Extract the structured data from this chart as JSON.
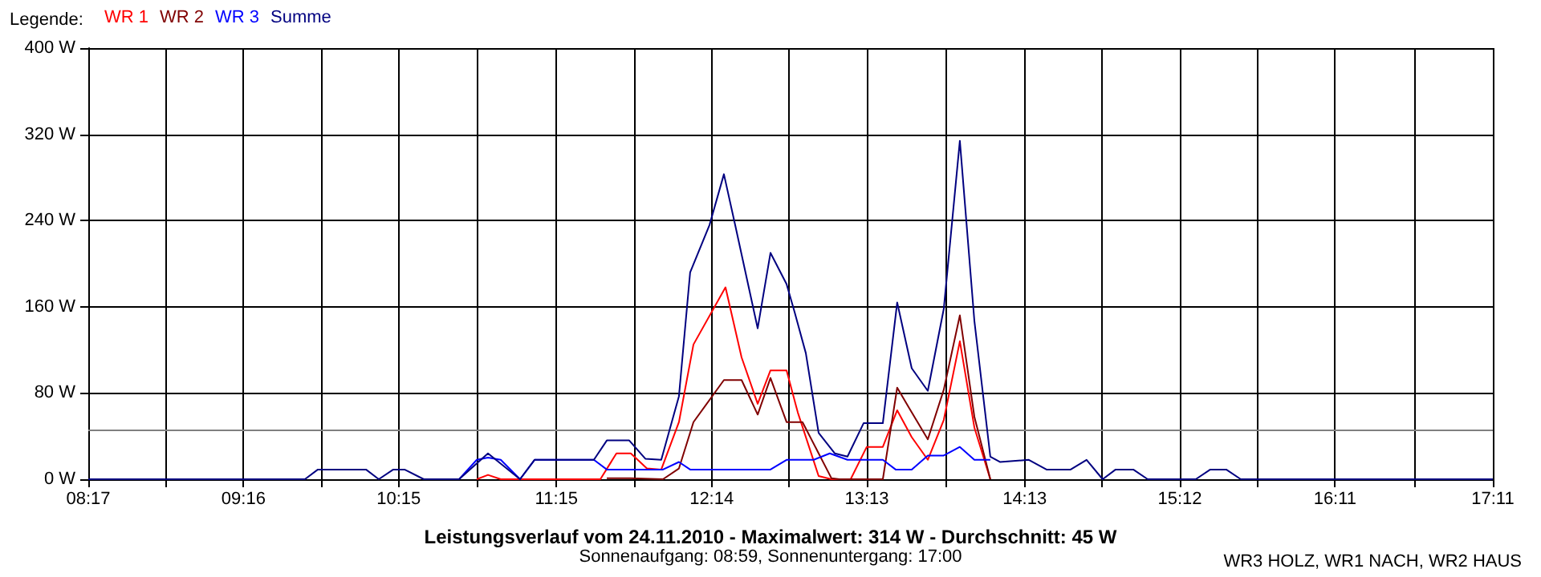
{
  "chart_data": {
    "type": "line",
    "title": "Leistungsverlauf vom 24.11.2010 - Maximalwert: 314 W - Durchschnitt: 45 W",
    "subtitle": "Sonnenaufgang: 08:59, Sonnenuntergang: 17:00",
    "annotations": [
      "WR3 HOLZ, WR1 NACH, WR2 HAUS"
    ],
    "legend_title": "Legende:",
    "legend": "top left",
    "grid": true,
    "marker": "none",
    "line_style": "solid",
    "xlim": [
      8.2833,
      17.1833
    ],
    "xticks": [
      {
        "value": 8.2833,
        "label": "08:17"
      },
      {
        "value": 8.775,
        "label": null
      },
      {
        "value": 9.2667,
        "label": "09:16"
      },
      {
        "value": 9.7583,
        "label": null
      },
      {
        "value": 10.25,
        "label": "10:15"
      },
      {
        "value": 10.75,
        "label": null
      },
      {
        "value": 11.25,
        "label": "11:15"
      },
      {
        "value": 11.7417,
        "label": null
      },
      {
        "value": 12.2333,
        "label": "12:14"
      },
      {
        "value": 12.725,
        "label": null
      },
      {
        "value": 13.2167,
        "label": "13:13"
      },
      {
        "value": 13.7167,
        "label": null
      },
      {
        "value": 14.2167,
        "label": "14:13"
      },
      {
        "value": 14.7083,
        "label": null
      },
      {
        "value": 15.2,
        "label": "15:12"
      },
      {
        "value": 15.6917,
        "label": null
      },
      {
        "value": 16.1833,
        "label": "16:11"
      },
      {
        "value": 16.6833,
        "label": null
      },
      {
        "value": 17.1833,
        "label": "17:11"
      }
    ],
    "ylim": [
      0,
      400
    ],
    "yticks": [
      {
        "value": 0,
        "label": "0 W"
      },
      {
        "value": 80,
        "label": "80 W"
      },
      {
        "value": 160,
        "label": "160 W"
      },
      {
        "value": 240,
        "label": "240 W"
      },
      {
        "value": 320,
        "label": "320 W"
      },
      {
        "value": 400,
        "label": "400 W"
      }
    ],
    "ref_lines": [
      {
        "axis": "y",
        "value": 45,
        "label": null,
        "color": "#808080"
      }
    ],
    "series": [
      {
        "name": "WR 1",
        "color": "#ff0000",
        "x": [
          10.745,
          10.816,
          10.897,
          11.528,
          11.63,
          11.721,
          11.823,
          11.914,
          12.026,
          12.118,
          12.321,
          12.423,
          12.525,
          12.606,
          12.708,
          12.779,
          12.911,
          12.992,
          13.114,
          13.216,
          13.318,
          13.409,
          13.501,
          13.603,
          13.704,
          13.806,
          13.898,
          13.999
        ],
        "values": [
          0,
          4,
          0,
          0,
          24,
          24,
          10,
          9,
          53,
          125,
          178,
          113,
          70,
          101,
          101,
          62,
          3,
          0,
          0,
          30,
          30,
          64,
          39,
          18,
          55,
          128,
          48,
          0
        ]
      },
      {
        "name": "WR 2",
        "color": "#800000",
        "x": [
          11.569,
          11.721,
          11.925,
          12.026,
          12.118,
          12.311,
          12.423,
          12.525,
          12.606,
          12.708,
          12.809,
          12.992,
          13.043,
          13.318,
          13.409,
          13.501,
          13.603,
          13.704,
          13.806,
          13.898,
          13.999
        ],
        "values": [
          1,
          1,
          0,
          10,
          53,
          92,
          92,
          60,
          94,
          53,
          53,
          1,
          0,
          0,
          85,
          62,
          37,
          83,
          152,
          58,
          0
        ]
      },
      {
        "name": "WR 3",
        "color": "#0000ff",
        "x": [
          10.633,
          10.745,
          10.816,
          10.897,
          11.019,
          11.111,
          11.487,
          11.569,
          11.925,
          12.026,
          12.097,
          12.606,
          12.708,
          12.88,
          12.982,
          13.094,
          13.318,
          13.399,
          13.501,
          13.603,
          13.704,
          13.806,
          13.898,
          13.999
        ],
        "values": [
          0,
          18,
          20,
          18,
          0,
          18,
          18,
          9,
          9,
          16,
          9,
          9,
          18,
          18,
          24,
          18,
          18,
          9,
          9,
          22,
          22,
          30,
          18,
          18
        ]
      },
      {
        "name": "Summe",
        "color": "#000080",
        "x": [
          8.2833,
          9.656,
          9.738,
          10.043,
          10.124,
          10.216,
          10.287,
          10.409,
          10.633,
          10.816,
          11.019,
          11.111,
          11.487,
          11.569,
          11.711,
          11.813,
          11.914,
          12.026,
          12.097,
          12.22,
          12.311,
          12.382,
          12.525,
          12.606,
          12.708,
          12.759,
          12.83,
          12.911,
          13.013,
          13.094,
          13.196,
          13.318,
          13.409,
          13.501,
          13.603,
          13.704,
          13.806,
          13.898,
          13.999,
          14.06,
          14.243,
          14.355,
          14.508,
          14.609,
          14.711,
          14.793,
          14.905,
          14.996,
          15.301,
          15.393,
          15.494,
          15.586,
          17.1833
        ],
        "values": [
          0,
          0,
          9,
          9,
          0,
          9,
          9,
          0,
          0,
          24,
          0,
          18,
          18,
          36,
          36,
          19,
          18,
          77,
          192,
          236,
          283,
          236,
          140,
          210,
          181,
          155,
          117,
          43,
          24,
          21,
          52,
          52,
          164,
          103,
          82,
          158,
          314,
          147,
          21,
          16,
          18,
          9,
          9,
          18,
          0,
          9,
          9,
          0,
          0,
          9,
          9,
          0,
          0
        ]
      }
    ]
  }
}
